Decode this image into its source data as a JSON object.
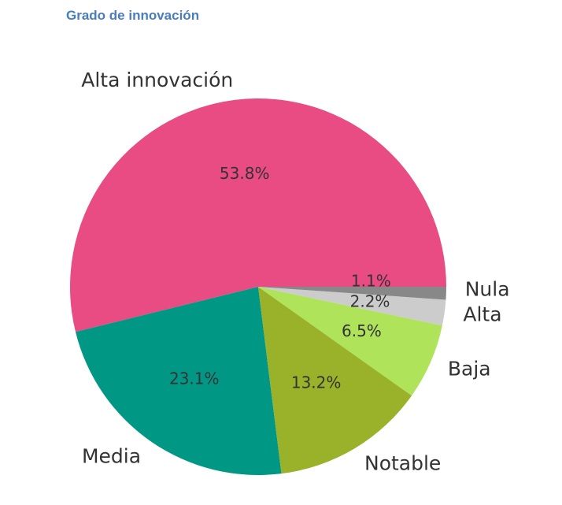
{
  "chart_data": {
    "type": "pie",
    "title": "Grado de innovación",
    "categories": [
      "Alta innovación",
      "Media",
      "Notable",
      "Baja",
      "Alta",
      "Nula"
    ],
    "values": [
      53.8,
      23.1,
      13.2,
      6.5,
      2.2,
      1.1
    ],
    "value_labels": [
      "53.8%",
      "23.1%",
      "13.2%",
      "6.5%",
      "2.2%",
      "1.1%"
    ],
    "colors": [
      "#e84c82",
      "#009885",
      "#9ab12a",
      "#aee35a",
      "#cccccc",
      "#888888"
    ],
    "start_angle_deg": 0,
    "direction": "counterclockwise"
  }
}
